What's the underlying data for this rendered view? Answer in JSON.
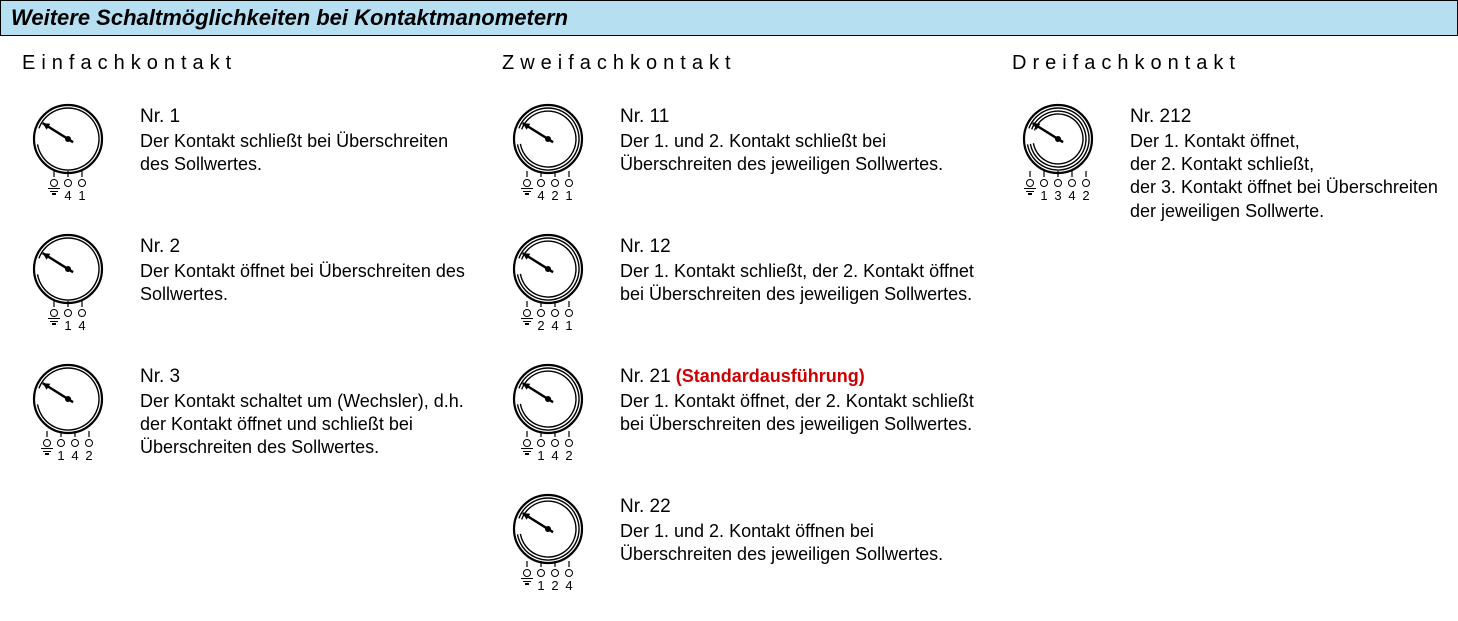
{
  "title": "Weitere Schaltmöglichkeiten bei Kontaktmanometern",
  "title_bg": "#b7dff2",
  "gauge": {
    "outer_r": 34,
    "inner_start_r": 31,
    "inner_gap": 3,
    "stroke": "#000000",
    "stroke_w": 2.2,
    "needle": {
      "angle": 148,
      "len_out": 30,
      "len_back": 6
    }
  },
  "columns": [
    {
      "heading": "Einfachkontakt",
      "entries": [
        {
          "nr": "Nr. 1",
          "desc": "Der Kontakt schließt bei Über­schreiten des Sollwertes.",
          "rings": 1,
          "terminals": [
            "4",
            "1"
          ]
        },
        {
          "nr": "Nr. 2",
          "desc": "Der Kontakt öffnet bei Überschrei­ten des Sollwertes.",
          "rings": 1,
          "terminals": [
            "1",
            "4"
          ]
        },
        {
          "nr": "Nr. 3",
          "desc": "Der Kontakt schaltet um (Wechs­ler), d.h. der Kontakt öffnet und schließt bei Überschreiten des Sollwertes.",
          "rings": 1,
          "terminals": [
            "1",
            "4",
            "2"
          ]
        }
      ]
    },
    {
      "heading": "Zweifachkontakt",
      "entries": [
        {
          "nr": "Nr. 11",
          "desc": "Der 1. und 2. Kontakt schließt bei Überschreiten des jeweiligen Sollwertes.",
          "rings": 2,
          "terminals": [
            "4",
            "2",
            "1"
          ]
        },
        {
          "nr": "Nr. 12",
          "desc": "Der 1. Kontakt schließt, der 2. Kontakt öffnet bei Überschreiten des jeweiligen Sollwertes.",
          "rings": 2,
          "terminals": [
            "2",
            "4",
            "1"
          ]
        },
        {
          "nr": "Nr. 21",
          "desc": "Der 1. Kontakt öffnet, der 2. Kontakt schließt bei Überschreiten des jeweiligen Sollwertes.",
          "standard": "(Standardausführung)",
          "rings": 2,
          "terminals": [
            "1",
            "4",
            "2"
          ]
        },
        {
          "nr": "Nr. 22",
          "desc": "Der 1. und 2. Kontakt öffnen bei Überschreiten des jeweiligen Sollwertes.",
          "rings": 2,
          "terminals": [
            "1",
            "2",
            "4"
          ]
        }
      ]
    },
    {
      "heading": "Dreifachkontakt",
      "entries": [
        {
          "nr": "Nr. 212",
          "desc": "Der 1. Kontakt öffnet,\nder 2. Kontakt schließt,\nder 3. Kontakt öffnet bei Über­schreiten der jeweiligen Sollwerte.",
          "rings": 3,
          "terminals": [
            "1",
            "3",
            "4",
            "2"
          ]
        }
      ]
    }
  ]
}
